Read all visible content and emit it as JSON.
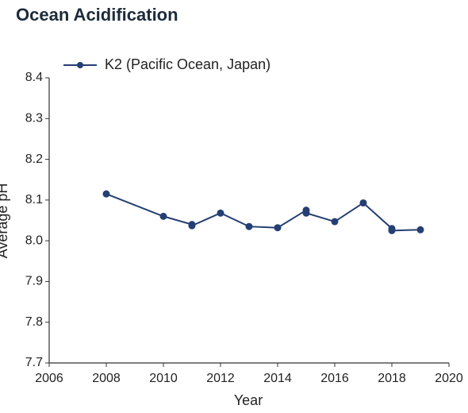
{
  "chart_data": {
    "type": "line",
    "title": "Ocean Acidification",
    "x_label": "Year",
    "y_label": "Average pH",
    "x": [
      2008,
      2010,
      2011,
      2011,
      2012,
      2013,
      2014,
      2015,
      2015,
      2016,
      2017,
      2018,
      2018,
      2019
    ],
    "series": [
      {
        "name": "K2 (Pacific Ocean, Japan)",
        "color": "#243f73",
        "values": [
          8.115,
          8.06,
          8.04,
          8.037,
          8.068,
          8.035,
          8.032,
          8.075,
          8.068,
          8.047,
          8.093,
          8.03,
          8.025,
          8.027
        ]
      }
    ],
    "xlim": [
      2006,
      2020
    ],
    "xticks": [
      2006,
      2008,
      2010,
      2012,
      2014,
      2016,
      2018,
      2020
    ],
    "ylim": [
      7.7,
      8.4
    ],
    "yticks": [
      7.7,
      7.8,
      7.9,
      {
        "value": 8,
        "label": "8.0"
      },
      8.1,
      8.2,
      8.3,
      8.4
    ],
    "legend": "top-left",
    "grid": false
  }
}
